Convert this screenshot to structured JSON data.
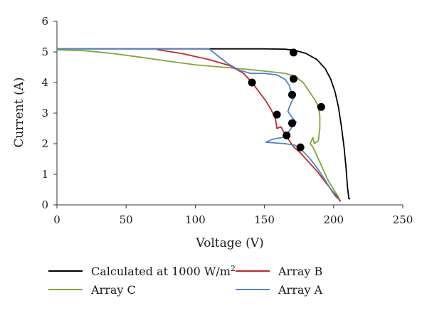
{
  "chart_data": {
    "type": "line",
    "xlabel": "Voltage (V)",
    "ylabel": "Current (A)",
    "xlim": [
      0,
      250
    ],
    "ylim": [
      0,
      6
    ],
    "xticks": [
      0,
      50,
      100,
      150,
      200,
      250
    ],
    "yticks": [
      0,
      1,
      2,
      3,
      4,
      5,
      6
    ],
    "grid": false,
    "legend_position": "bottom",
    "series": [
      {
        "name": "Calculated at 1000 W/m",
        "name_sup": "2",
        "color": "#000000",
        "points": [
          [
            0,
            5.1
          ],
          [
            150,
            5.1
          ],
          [
            165,
            5.09
          ],
          [
            172,
            5.05
          ],
          [
            180,
            4.95
          ],
          [
            188,
            4.75
          ],
          [
            194,
            4.45
          ],
          [
            198,
            4.1
          ],
          [
            201,
            3.7
          ],
          [
            203.5,
            3.2
          ],
          [
            205.5,
            2.6
          ],
          [
            207.5,
            1.9
          ],
          [
            209,
            1.2
          ],
          [
            210,
            0.6
          ],
          [
            211,
            0.2
          ],
          [
            212,
            0.2
          ]
        ]
      },
      {
        "name": "Array C",
        "color": "#7fa63a",
        "points": [
          [
            0,
            5.07
          ],
          [
            20,
            5.04
          ],
          [
            40,
            4.95
          ],
          [
            60,
            4.83
          ],
          [
            80,
            4.7
          ],
          [
            100,
            4.58
          ],
          [
            120,
            4.5
          ],
          [
            140,
            4.42
          ],
          [
            155,
            4.35
          ],
          [
            165,
            4.3
          ],
          [
            172,
            4.2
          ],
          [
            178,
            4.0
          ],
          [
            184,
            3.6
          ],
          [
            187,
            3.4
          ],
          [
            189,
            3.2
          ],
          [
            190,
            2.9
          ],
          [
            190,
            2.5
          ],
          [
            189,
            2.1
          ],
          [
            186,
            2.0
          ],
          [
            185,
            2.2
          ],
          [
            183,
            2.0
          ],
          [
            185,
            1.9
          ],
          [
            188,
            1.6
          ],
          [
            192,
            1.2
          ],
          [
            196,
            0.8
          ],
          [
            200,
            0.5
          ],
          [
            203,
            0.3
          ],
          [
            204.5,
            0.1
          ]
        ]
      },
      {
        "name": "Array B",
        "color": "#c1272d",
        "points": [
          [
            72,
            5.08
          ],
          [
            90,
            4.95
          ],
          [
            110,
            4.75
          ],
          [
            125,
            4.55
          ],
          [
            135,
            4.3
          ],
          [
            141,
            4.0
          ],
          [
            146,
            3.7
          ],
          [
            151,
            3.4
          ],
          [
            155,
            3.1
          ],
          [
            158,
            2.8
          ],
          [
            159,
            2.5
          ],
          [
            162,
            2.55
          ],
          [
            165,
            2.3
          ],
          [
            168,
            2.1
          ],
          [
            171,
            1.9
          ],
          [
            176,
            1.7
          ],
          [
            182,
            1.4
          ],
          [
            188,
            1.1
          ],
          [
            194,
            0.75
          ],
          [
            199,
            0.45
          ],
          [
            203,
            0.25
          ],
          [
            205,
            0.12
          ]
        ]
      },
      {
        "name": "Array A",
        "color": "#4f83c3",
        "points": [
          [
            0,
            5.1
          ],
          [
            110,
            5.1
          ],
          [
            117,
            4.85
          ],
          [
            124,
            4.6
          ],
          [
            132,
            4.4
          ],
          [
            140,
            4.3
          ],
          [
            150,
            4.3
          ],
          [
            159,
            4.25
          ],
          [
            165,
            4.1
          ],
          [
            168,
            3.9
          ],
          [
            169,
            3.75
          ],
          [
            172,
            3.55
          ],
          [
            170,
            3.4
          ],
          [
            168,
            3.2
          ],
          [
            167,
            3.05
          ],
          [
            170,
            2.85
          ],
          [
            173,
            2.7
          ],
          [
            170,
            2.55
          ],
          [
            167,
            2.35
          ],
          [
            163,
            2.2
          ],
          [
            156,
            2.15
          ],
          [
            151,
            2.05
          ],
          [
            165,
            2.0
          ],
          [
            172,
            1.95
          ],
          [
            178,
            1.75
          ],
          [
            184,
            1.45
          ],
          [
            189,
            1.15
          ],
          [
            194,
            0.8
          ],
          [
            198,
            0.5
          ],
          [
            201,
            0.3
          ],
          [
            203,
            0.2
          ]
        ]
      }
    ],
    "mpp": [
      [
        171,
        4.98
      ],
      [
        171,
        4.12
      ],
      [
        170,
        3.6
      ],
      [
        191,
        3.2
      ],
      [
        141,
        4.0
      ],
      [
        159,
        2.95
      ],
      [
        170,
        2.67
      ],
      [
        166,
        2.27
      ],
      [
        176,
        1.88
      ]
    ]
  }
}
